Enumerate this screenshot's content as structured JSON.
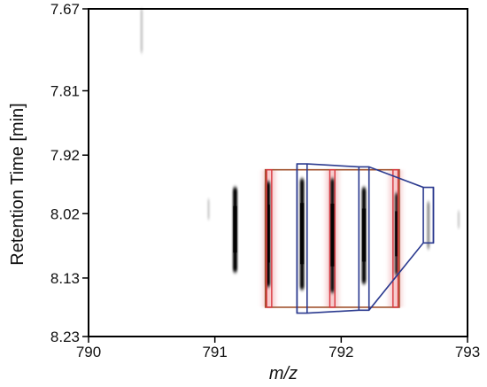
{
  "chart_data": {
    "type": "heatmap",
    "xlabel": "m/z",
    "ylabel": "Retention Time [min]",
    "xlim": [
      790,
      793
    ],
    "ylim": [
      7.67,
      8.23
    ],
    "y_inverted": true,
    "x_ticks": [
      "790",
      "791",
      "792",
      "793"
    ],
    "y_ticks": [
      "7.67",
      "7.81",
      "7.92",
      "8.02",
      "8.13",
      "8.23"
    ],
    "grid": false,
    "signals": [
      {
        "mz": 790.42,
        "rt_start": 7.67,
        "rt_end": 7.745,
        "intensity": 0.12
      },
      {
        "mz": 790.95,
        "rt_start": 7.995,
        "rt_end": 8.03,
        "intensity": 0.08
      },
      {
        "mz": 791.16,
        "rt_start": 7.975,
        "rt_end": 8.12,
        "intensity": 1.0
      },
      {
        "mz": 791.42,
        "rt_start": 7.965,
        "rt_end": 8.145,
        "intensity": 1.0
      },
      {
        "mz": 791.69,
        "rt_start": 7.96,
        "rt_end": 8.15,
        "intensity": 0.95
      },
      {
        "mz": 791.93,
        "rt_start": 7.96,
        "rt_end": 8.155,
        "intensity": 0.9
      },
      {
        "mz": 792.18,
        "rt_start": 7.975,
        "rt_end": 8.14,
        "intensity": 0.95
      },
      {
        "mz": 792.44,
        "rt_start": 7.985,
        "rt_end": 8.125,
        "intensity": 0.8
      },
      {
        "mz": 792.69,
        "rt_start": 8.0,
        "rt_end": 8.08,
        "intensity": 0.35
      },
      {
        "mz": 792.93,
        "rt_start": 8.015,
        "rt_end": 8.045,
        "intensity": 0.08
      }
    ],
    "annotations": {
      "red_boxes": [
        {
          "mz_min": 791.41,
          "mz_max": 791.45,
          "rt_min": 7.945,
          "rt_max": 8.18
        },
        {
          "mz_min": 791.91,
          "mz_max": 791.95,
          "rt_min": 7.945,
          "rt_max": 8.18
        },
        {
          "mz_min": 792.41,
          "mz_max": 792.45,
          "rt_min": 7.945,
          "rt_max": 8.18
        }
      ],
      "brown_outline": {
        "mz_min": 791.4,
        "mz_max": 792.46,
        "rt_min": 7.945,
        "rt_max": 8.18
      },
      "blue_envelope": [
        {
          "mz_min": 791.65,
          "mz_max": 791.73,
          "rt_min": 7.935,
          "rt_max": 8.19
        },
        {
          "mz_min": 792.14,
          "mz_max": 792.22,
          "rt_min": 7.94,
          "rt_max": 8.185
        },
        {
          "mz_min": 792.65,
          "mz_max": 792.73,
          "rt_min": 7.975,
          "rt_max": 8.07
        }
      ]
    },
    "colors": {
      "signal": "#000000",
      "red_box": "#d9363e",
      "red_glow": "#f5c6c8",
      "brown_box": "#a0522d",
      "blue_box": "#2b3a8f",
      "axis": "#000000"
    }
  }
}
